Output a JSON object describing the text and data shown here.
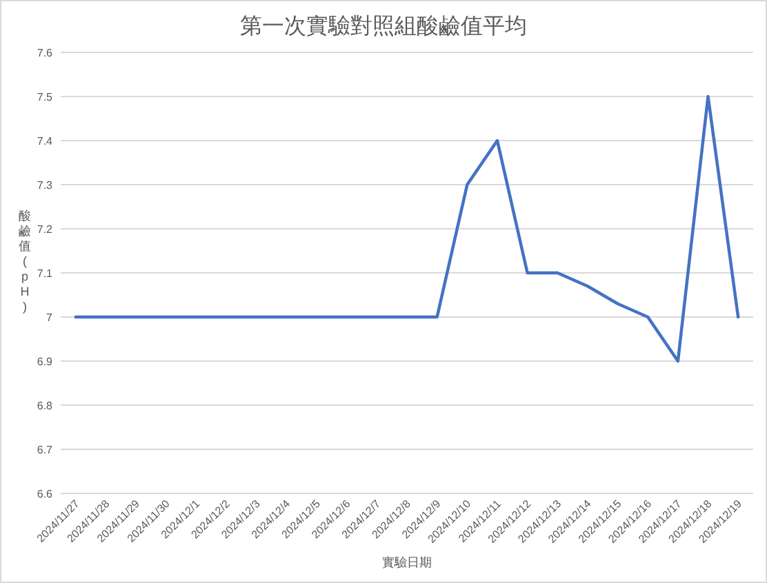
{
  "chart_data": {
    "type": "line",
    "title": "第一次實驗對照組酸鹼值平均",
    "xlabel": "實驗日期",
    "ylabel": "酸鹼值(pH)",
    "categories": [
      "2024/11/27",
      "2024/11/28",
      "2024/11/29",
      "2024/11/30",
      "2024/12/1",
      "2024/12/2",
      "2024/12/3",
      "2024/12/4",
      "2024/12/5",
      "2024/12/6",
      "2024/12/7",
      "2024/12/8",
      "2024/12/9",
      "2024/12/10",
      "2024/12/11",
      "2024/12/12",
      "2024/12/13",
      "2024/12/14",
      "2024/12/15",
      "2024/12/16",
      "2024/12/17",
      "2024/12/18",
      "2024/12/19"
    ],
    "series": [
      {
        "color": "#4472c4",
        "values": [
          7,
          7,
          7,
          7,
          7,
          7,
          7,
          7,
          7,
          7,
          7,
          7,
          7,
          7.3,
          7.4,
          7.1,
          7.1,
          7.07,
          7.03,
          7,
          6.9,
          7.5,
          7
        ]
      }
    ],
    "ylim": [
      6.6,
      7.6
    ],
    "yticks": [
      6.6,
      6.7,
      6.8,
      6.9,
      7,
      7.1,
      7.2,
      7.3,
      7.4,
      7.5,
      7.6
    ],
    "grid": "y",
    "marker": "none",
    "line_style": "solid"
  }
}
